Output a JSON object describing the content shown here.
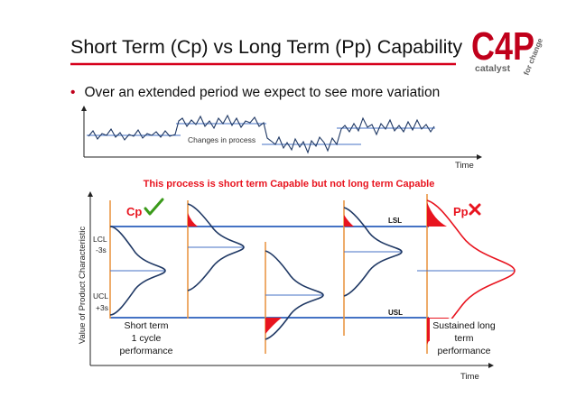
{
  "slide": {
    "title": "Short Term (Cp) vs Long Term (Pp) Capability",
    "bullet": "Over an extended period we expect to see more variation"
  },
  "logo": {
    "mark": "C4P",
    "brand": "catalyst",
    "suffix": "for change",
    "color": "#c0001b"
  },
  "top_chart": {
    "annotation": "Changes in process",
    "x_axis_label": "Time"
  },
  "statement": "This process is short term Capable but not long term Capable",
  "main_chart": {
    "y_axis_label": "Value of Product Characteristic",
    "x_axis_label": "Time",
    "lcl_label": "LCL",
    "lcl_sigma": "-3s",
    "ucl_label": "UCL",
    "ucl_sigma": "+3s",
    "lsl_label": "LSL",
    "usl_label": "USL",
    "cp_label": "Cp",
    "cp_status_icon": "check-icon",
    "pp_label": "Pp",
    "pp_status_icon": "cross-icon",
    "short_term_line1": "Short term",
    "short_term_line2": "1 cycle",
    "short_term_line3": "performance",
    "long_term_line1": "Sustained long",
    "long_term_line2": "term",
    "long_term_line3": "performance"
  },
  "colors": {
    "accent_red": "#e8141f",
    "limit_blue": "#4472c4",
    "curve_navy": "#1f3864",
    "orange": "#e8913a",
    "check_green": "#3a9a1a"
  }
}
